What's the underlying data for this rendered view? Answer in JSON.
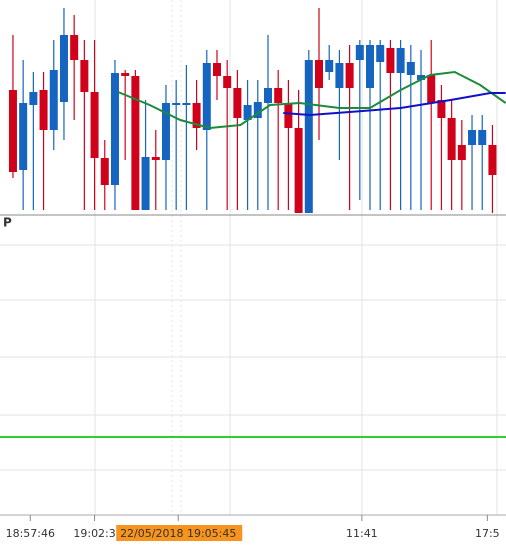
{
  "chart_data": {
    "type": "candlestick",
    "pane_label": "P",
    "open": [
      125,
      45,
      110,
      125,
      85,
      113,
      180,
      155,
      123,
      57,
      30,
      142,
      139,
      5,
      58,
      55,
      110,
      110,
      112,
      85,
      152,
      139,
      127,
      95,
      97,
      112,
      127,
      112,
      87,
      2,
      155,
      143,
      127,
      152,
      155,
      127,
      153,
      167,
      142,
      140,
      135,
      140,
      115,
      97,
      70,
      70,
      70,
      70
    ],
    "high": [
      180,
      155,
      143,
      143,
      175,
      207,
      200,
      175,
      175,
      75,
      155,
      145,
      145,
      115,
      85,
      130,
      135,
      150,
      135,
      165,
      165,
      155,
      145,
      135,
      135,
      180,
      145,
      135,
      125,
      165,
      207,
      170,
      165,
      170,
      175,
      175,
      175,
      175,
      175,
      170,
      165,
      175,
      130,
      115,
      95,
      100,
      100,
      90
    ],
    "low": [
      37,
      5,
      5,
      5,
      65,
      75,
      95,
      5,
      5,
      5,
      5,
      55,
      5,
      5,
      5,
      5,
      5,
      5,
      65,
      5,
      115,
      5,
      5,
      5,
      5,
      5,
      5,
      5,
      2,
      2,
      75,
      135,
      55,
      5,
      15,
      5,
      5,
      5,
      5,
      5,
      5,
      5,
      5,
      5,
      5,
      5,
      5,
      2
    ],
    "close": [
      43,
      112,
      123,
      85,
      145,
      180,
      155,
      123,
      57,
      30,
      142,
      139,
      5,
      58,
      55,
      112,
      112,
      112,
      87,
      152,
      139,
      127,
      97,
      110,
      113,
      127,
      112,
      87,
      2,
      155,
      127,
      155,
      152,
      127,
      170,
      170,
      170,
      142,
      167,
      153,
      140,
      112,
      97,
      55,
      55,
      85,
      85,
      40
    ],
    "up_color": "#1565c0",
    "down_color": "#d0021b",
    "series": [
      {
        "color": "#1e8a3c",
        "x": [
          10.3,
          13.4,
          16.4,
          19.3,
          22.3,
          25.2,
          28.1,
          32,
          35,
          38,
          40.9,
          43.3,
          45.8,
          48.3
        ],
        "values": [
          123,
          110,
          95,
          87,
          90,
          110,
          112,
          107,
          107,
          125,
          140,
          143,
          130,
          112
        ]
      },
      {
        "color": "#1010c8",
        "x": [
          26.5,
          29.1,
          33,
          38,
          42.9,
          46.8,
          48.3
        ],
        "values": [
          102,
          100,
          103,
          107,
          115,
          122,
          122
        ]
      }
    ],
    "xlim": [
      -1.27,
      48.33
    ],
    "ylim": [
      0,
      215
    ],
    "xticks": [
      {
        "value": 1.7,
        "label": "18:57:46"
      },
      {
        "value": 8,
        "label": "19:02:3"
      },
      {
        "value": 16.2,
        "label": "22/05/2018 19:05:45"
      },
      {
        "value": 34.2,
        "label": "11:41"
      },
      {
        "value": 46.5,
        "label": "17:5"
      }
    ],
    "highlight_tick": 2
  }
}
